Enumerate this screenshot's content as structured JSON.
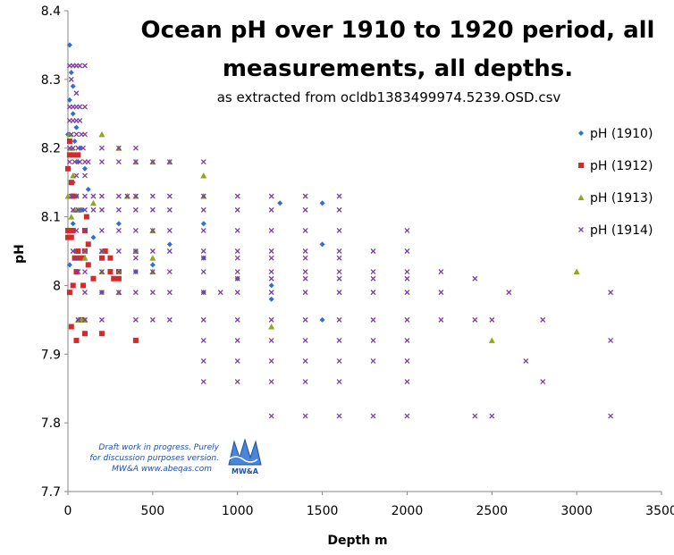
{
  "chart_data": {
    "type": "scatter",
    "title_lines": [
      "Ocean pH over 1910 to 1920 period, all",
      "measurements, all depths."
    ],
    "subtitle": "as extracted from ocldb1383499974.5239.OSD.csv",
    "xlabel": "Depth m",
    "ylabel": "pH",
    "xlim": [
      0,
      3500
    ],
    "ylim": [
      7.7,
      8.4
    ],
    "x_ticks": [
      0,
      500,
      1000,
      1500,
      2000,
      2500,
      3000,
      3500
    ],
    "x_tick_labels": [
      "0",
      "500",
      "1000",
      "1500",
      "2000",
      "2500",
      "3000",
      "3500"
    ],
    "y_ticks": [
      7.7,
      7.8,
      7.9,
      8.0,
      8.1,
      8.2,
      8.3,
      8.4
    ],
    "y_tick_labels": [
      "7.7",
      "7.8",
      "7.9",
      "8",
      "8.1",
      "8.2",
      "8.3",
      "8.4"
    ],
    "grid": false,
    "legend_position": "right",
    "series": [
      {
        "name": "pH (1910)",
        "marker": "diamond",
        "color": "#2e6fd0",
        "points": [
          [
            10,
            8.35
          ],
          [
            20,
            8.31
          ],
          [
            30,
            8.29
          ],
          [
            10,
            8.27
          ],
          [
            30,
            8.25
          ],
          [
            50,
            8.23
          ],
          [
            0,
            8.22
          ],
          [
            40,
            8.21
          ],
          [
            70,
            8.2
          ],
          [
            20,
            8.19
          ],
          [
            60,
            8.18
          ],
          [
            100,
            8.17
          ],
          [
            30,
            8.15
          ],
          [
            50,
            8.13
          ],
          [
            120,
            8.14
          ],
          [
            80,
            8.11
          ],
          [
            30,
            8.09
          ],
          [
            150,
            8.07
          ],
          [
            40,
            8.05
          ],
          [
            200,
            8.04
          ],
          [
            300,
            8.09
          ],
          [
            400,
            8.05
          ],
          [
            500,
            8.03
          ],
          [
            600,
            8.06
          ],
          [
            400,
            8.02
          ],
          [
            800,
            8.09
          ],
          [
            800,
            8.04
          ],
          [
            1000,
            8.01
          ],
          [
            1200,
            7.98
          ],
          [
            1200,
            8.0
          ],
          [
            1250,
            8.12
          ],
          [
            1500,
            8.12
          ],
          [
            1500,
            8.06
          ],
          [
            1500,
            7.95
          ],
          [
            800,
            7.99
          ],
          [
            200,
            7.99
          ],
          [
            20,
            8.15
          ],
          [
            10,
            8.03
          ]
        ]
      },
      {
        "name": "pH (1912)",
        "marker": "square",
        "color": "#d12b2b",
        "points": [
          [
            10,
            8.19
          ],
          [
            30,
            8.19
          ],
          [
            60,
            8.19
          ],
          [
            0,
            8.17
          ],
          [
            20,
            8.15
          ],
          [
            0,
            8.08
          ],
          [
            30,
            8.08
          ],
          [
            0,
            8.07
          ],
          [
            20,
            8.07
          ],
          [
            120,
            8.06
          ],
          [
            60,
            8.05
          ],
          [
            40,
            8.04
          ],
          [
            70,
            8.04
          ],
          [
            90,
            8.04
          ],
          [
            100,
            8.05
          ],
          [
            120,
            8.03
          ],
          [
            150,
            8.01
          ],
          [
            200,
            8.04
          ],
          [
            220,
            8.05
          ],
          [
            250,
            8.04
          ],
          [
            250,
            8.02
          ],
          [
            300,
            8.02
          ],
          [
            270,
            8.01
          ],
          [
            300,
            8.01
          ],
          [
            50,
            8.02
          ],
          [
            30,
            8.0
          ],
          [
            10,
            7.99
          ],
          [
            20,
            7.94
          ],
          [
            50,
            7.92
          ],
          [
            100,
            7.93
          ],
          [
            200,
            7.93
          ],
          [
            400,
            7.92
          ],
          [
            80,
            7.95
          ],
          [
            90,
            8.0
          ],
          [
            100,
            8.08
          ],
          [
            110,
            8.1
          ],
          [
            30,
            8.13
          ],
          [
            10,
            8.21
          ]
        ]
      },
      {
        "name": "pH (1913)",
        "marker": "triangle",
        "color": "#8ea81e",
        "points": [
          [
            10,
            8.22
          ],
          [
            20,
            8.2
          ],
          [
            30,
            8.16
          ],
          [
            0,
            8.13
          ],
          [
            40,
            8.11
          ],
          [
            60,
            8.11
          ],
          [
            200,
            8.22
          ],
          [
            300,
            8.2
          ],
          [
            400,
            8.18
          ],
          [
            500,
            8.18
          ],
          [
            600,
            8.18
          ],
          [
            800,
            8.16
          ],
          [
            100,
            8.05
          ],
          [
            200,
            8.05
          ],
          [
            400,
            8.05
          ],
          [
            500,
            8.04
          ],
          [
            500,
            8.08
          ],
          [
            300,
            8.02
          ],
          [
            500,
            8.02
          ],
          [
            200,
            8.02
          ],
          [
            100,
            8.04
          ],
          [
            300,
            7.99
          ],
          [
            60,
            7.95
          ],
          [
            80,
            7.95
          ],
          [
            100,
            7.95
          ],
          [
            1200,
            7.94
          ],
          [
            2500,
            7.92
          ],
          [
            3000,
            8.02
          ],
          [
            800,
            8.13
          ],
          [
            400,
            8.13
          ],
          [
            350,
            8.13
          ],
          [
            150,
            8.12
          ],
          [
            20,
            8.1
          ]
        ]
      },
      {
        "name": "pH (1914)",
        "marker": "x",
        "color": "#7b3f9e",
        "points": [
          [
            10,
            8.32
          ],
          [
            30,
            8.32
          ],
          [
            50,
            8.32
          ],
          [
            70,
            8.32
          ],
          [
            100,
            8.32
          ],
          [
            20,
            8.3
          ],
          [
            50,
            8.28
          ],
          [
            10,
            8.26
          ],
          [
            30,
            8.26
          ],
          [
            50,
            8.26
          ],
          [
            70,
            8.26
          ],
          [
            100,
            8.26
          ],
          [
            10,
            8.24
          ],
          [
            30,
            8.24
          ],
          [
            50,
            8.24
          ],
          [
            70,
            8.24
          ],
          [
            20,
            8.22
          ],
          [
            50,
            8.22
          ],
          [
            80,
            8.22
          ],
          [
            100,
            8.22
          ],
          [
            10,
            8.2
          ],
          [
            30,
            8.2
          ],
          [
            60,
            8.2
          ],
          [
            90,
            8.2
          ],
          [
            10,
            8.18
          ],
          [
            40,
            8.18
          ],
          [
            70,
            8.18
          ],
          [
            100,
            8.18
          ],
          [
            120,
            8.18
          ],
          [
            200,
            8.2
          ],
          [
            300,
            8.2
          ],
          [
            400,
            8.2
          ],
          [
            50,
            8.16
          ],
          [
            100,
            8.16
          ],
          [
            200,
            8.18
          ],
          [
            300,
            8.18
          ],
          [
            400,
            8.18
          ],
          [
            500,
            8.18
          ],
          [
            600,
            8.18
          ],
          [
            800,
            8.18
          ],
          [
            20,
            8.13
          ],
          [
            50,
            8.13
          ],
          [
            100,
            8.13
          ],
          [
            150,
            8.13
          ],
          [
            200,
            8.13
          ],
          [
            300,
            8.13
          ],
          [
            350,
            8.13
          ],
          [
            400,
            8.13
          ],
          [
            500,
            8.13
          ],
          [
            600,
            8.13
          ],
          [
            800,
            8.13
          ],
          [
            1000,
            8.13
          ],
          [
            1200,
            8.13
          ],
          [
            1400,
            8.13
          ],
          [
            1600,
            8.13
          ],
          [
            30,
            8.11
          ],
          [
            60,
            8.11
          ],
          [
            100,
            8.11
          ],
          [
            150,
            8.11
          ],
          [
            200,
            8.11
          ],
          [
            300,
            8.11
          ],
          [
            400,
            8.11
          ],
          [
            500,
            8.11
          ],
          [
            600,
            8.11
          ],
          [
            800,
            8.11
          ],
          [
            1000,
            8.11
          ],
          [
            1200,
            8.11
          ],
          [
            1400,
            8.11
          ],
          [
            1600,
            8.11
          ],
          [
            2000,
            8.08
          ],
          [
            50,
            8.08
          ],
          [
            100,
            8.08
          ],
          [
            200,
            8.08
          ],
          [
            300,
            8.08
          ],
          [
            400,
            8.08
          ],
          [
            500,
            8.08
          ],
          [
            600,
            8.08
          ],
          [
            800,
            8.08
          ],
          [
            1000,
            8.08
          ],
          [
            1200,
            8.08
          ],
          [
            1400,
            8.08
          ],
          [
            1600,
            8.08
          ],
          [
            30,
            8.05
          ],
          [
            100,
            8.05
          ],
          [
            200,
            8.05
          ],
          [
            300,
            8.05
          ],
          [
            400,
            8.05
          ],
          [
            500,
            8.05
          ],
          [
            600,
            8.05
          ],
          [
            800,
            8.05
          ],
          [
            1000,
            8.05
          ],
          [
            1200,
            8.05
          ],
          [
            1400,
            8.05
          ],
          [
            1600,
            8.05
          ],
          [
            1800,
            8.05
          ],
          [
            2000,
            8.05
          ],
          [
            50,
            8.04
          ],
          [
            400,
            8.04
          ],
          [
            800,
            8.04
          ],
          [
            1000,
            8.04
          ],
          [
            1200,
            8.04
          ],
          [
            1400,
            8.04
          ],
          [
            1600,
            8.04
          ],
          [
            60,
            8.02
          ],
          [
            100,
            8.02
          ],
          [
            200,
            8.02
          ],
          [
            300,
            8.02
          ],
          [
            400,
            8.02
          ],
          [
            500,
            8.02
          ],
          [
            600,
            8.02
          ],
          [
            800,
            8.02
          ],
          [
            1000,
            8.02
          ],
          [
            1200,
            8.02
          ],
          [
            1400,
            8.02
          ],
          [
            1600,
            8.02
          ],
          [
            1800,
            8.02
          ],
          [
            2000,
            8.02
          ],
          [
            2200,
            8.02
          ],
          [
            1000,
            8.01
          ],
          [
            1200,
            8.01
          ],
          [
            1400,
            8.01
          ],
          [
            1600,
            8.01
          ],
          [
            1800,
            8.01
          ],
          [
            2000,
            8.01
          ],
          [
            2400,
            8.01
          ],
          [
            100,
            7.99
          ],
          [
            200,
            7.99
          ],
          [
            300,
            7.99
          ],
          [
            400,
            7.99
          ],
          [
            500,
            7.99
          ],
          [
            600,
            7.99
          ],
          [
            800,
            7.99
          ],
          [
            900,
            7.99
          ],
          [
            1000,
            7.99
          ],
          [
            1200,
            7.99
          ],
          [
            1400,
            7.99
          ],
          [
            1600,
            7.99
          ],
          [
            1800,
            7.99
          ],
          [
            2000,
            7.99
          ],
          [
            2200,
            7.99
          ],
          [
            2600,
            7.99
          ],
          [
            3200,
            7.99
          ],
          [
            60,
            7.95
          ],
          [
            100,
            7.95
          ],
          [
            200,
            7.95
          ],
          [
            400,
            7.95
          ],
          [
            500,
            7.95
          ],
          [
            600,
            7.95
          ],
          [
            800,
            7.95
          ],
          [
            1000,
            7.95
          ],
          [
            1200,
            7.95
          ],
          [
            1400,
            7.95
          ],
          [
            1600,
            7.95
          ],
          [
            1800,
            7.95
          ],
          [
            2000,
            7.95
          ],
          [
            2200,
            7.95
          ],
          [
            2400,
            7.95
          ],
          [
            2500,
            7.95
          ],
          [
            2800,
            7.95
          ],
          [
            800,
            7.92
          ],
          [
            1000,
            7.92
          ],
          [
            1200,
            7.92
          ],
          [
            1400,
            7.92
          ],
          [
            1600,
            7.92
          ],
          [
            1800,
            7.92
          ],
          [
            2000,
            7.92
          ],
          [
            3200,
            7.92
          ],
          [
            800,
            7.89
          ],
          [
            1000,
            7.89
          ],
          [
            1200,
            7.89
          ],
          [
            1400,
            7.89
          ],
          [
            1600,
            7.89
          ],
          [
            1800,
            7.89
          ],
          [
            2000,
            7.89
          ],
          [
            2700,
            7.89
          ],
          [
            800,
            7.86
          ],
          [
            1000,
            7.86
          ],
          [
            1200,
            7.86
          ],
          [
            1400,
            7.86
          ],
          [
            1600,
            7.86
          ],
          [
            2000,
            7.86
          ],
          [
            2800,
            7.86
          ],
          [
            1200,
            7.81
          ],
          [
            1400,
            7.81
          ],
          [
            1600,
            7.81
          ],
          [
            1800,
            7.81
          ],
          [
            2000,
            7.81
          ],
          [
            2400,
            7.81
          ],
          [
            2500,
            7.81
          ],
          [
            3200,
            7.81
          ]
        ]
      }
    ]
  },
  "watermark": {
    "lines": [
      "Draft work in progress.  Purely",
      "for discussion purposes version.",
      "MW&A www.abeqas.com"
    ],
    "logo_text": "MW&A"
  }
}
